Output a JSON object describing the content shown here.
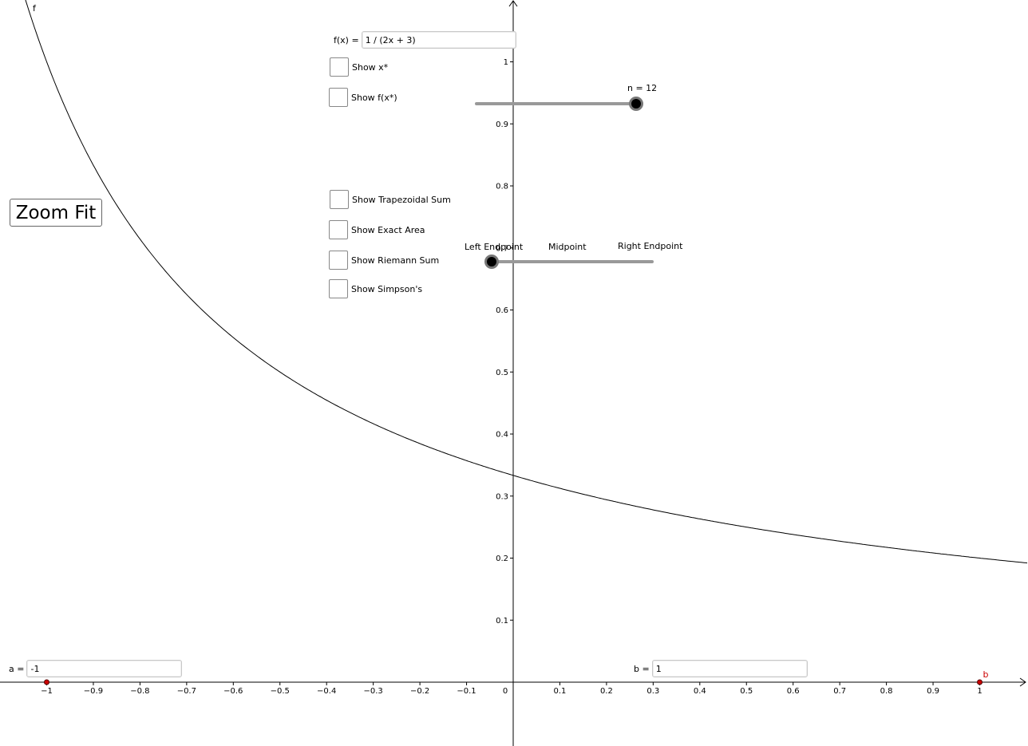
{
  "function": {
    "label": "f(x) =",
    "value": "1 / (2x + 3)",
    "curve_name": "f"
  },
  "checkboxes": {
    "show_xstar": "Show x*",
    "show_fxstar": "Show f(x*)",
    "show_trapezoidal": "Show Trapezoidal Sum",
    "show_exact": "Show Exact Area",
    "show_riemann": "Show Riemann Sum",
    "show_simpson": "Show Simpson's"
  },
  "zoom_button": "Zoom Fit",
  "slider_n": {
    "label": "n = 12",
    "value": 12
  },
  "slider_method": {
    "options": [
      "Left Endpoint",
      "Midpoint",
      "Right Endpoint"
    ],
    "selected": "Left Endpoint"
  },
  "input_a": {
    "label": "a =",
    "value": "-1"
  },
  "input_b": {
    "label": "b =",
    "value": "1"
  },
  "point_b_label": "b",
  "axes": {
    "x_ticks": [
      "−1",
      "−0.9",
      "−0.8",
      "−0.7",
      "−0.6",
      "−0.5",
      "−0.4",
      "−0.3",
      "−0.2",
      "−0.1",
      "0",
      "0.1",
      "0.2",
      "0.3",
      "0.4",
      "0.5",
      "0.6",
      "0.7",
      "0.8",
      "0.9",
      "1"
    ],
    "y_ticks": [
      "0.1",
      "0.2",
      "0.3",
      "0.4",
      "0.5",
      "0.6",
      "0.7",
      "0.8",
      "0.9",
      "1"
    ]
  },
  "colors": {
    "point": "#cc0000",
    "axis": "#000000",
    "slider_track": "#999999"
  }
}
